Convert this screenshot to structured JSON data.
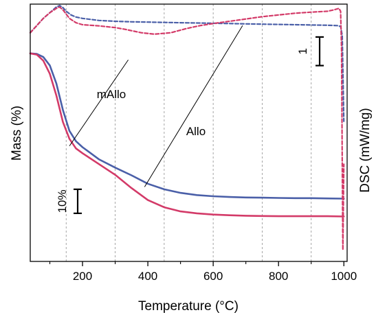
{
  "chart_data": {
    "type": "line",
    "xlabel": "Temperature (°C)",
    "ylabel_left": "Mass (%)",
    "ylabel_right": "DSC (mW/mg)",
    "xlim": [
      40,
      1010
    ],
    "x_major_ticks": [
      200,
      400,
      600,
      800,
      1000
    ],
    "x_major_tick_labels": [
      "200",
      "400",
      "600",
      "800",
      "1000"
    ],
    "x_minor_ticks": [
      100,
      300,
      500,
      700,
      900
    ],
    "gridlines_x": [
      150,
      300,
      450,
      600,
      750,
      900
    ],
    "grid": "vertical dashed",
    "mass_axis": {
      "ylim": [
        -6,
        101
      ],
      "scale_bar": {
        "label": "10%",
        "value": 10,
        "from": 14,
        "to": 24
      }
    },
    "dsc_axis": {
      "ylim": [
        -6.4,
        2.6
      ],
      "scale_bar": {
        "label": "1",
        "value": 1,
        "from": 0.45,
        "to": 1.45
      }
    },
    "annotations": [
      {
        "text": "mAllo",
        "leader_start": [
          160,
          42
        ],
        "leader_end": [
          340,
          0.65
        ],
        "leader_end_axis": "dsc"
      },
      {
        "text": "Allo",
        "leader_start": [
          390,
          25
        ],
        "leader_end": [
          690,
          1.85
        ],
        "leader_end_axis": "dsc"
      }
    ],
    "series": [
      {
        "name": "Allo",
        "kind": "mass",
        "style": "solid",
        "color": "#4a5fa8",
        "x": [
          40,
          60,
          80,
          100,
          120,
          140,
          160,
          180,
          200,
          250,
          300,
          350,
          400,
          450,
          500,
          550,
          600,
          650,
          700,
          750,
          800,
          850,
          900,
          950,
          1000
        ],
        "y": [
          80.5,
          80.3,
          79,
          75.5,
          68,
          57,
          48.3,
          44,
          41.5,
          36.5,
          33,
          29.8,
          26.3,
          24,
          22.5,
          21.6,
          21.1,
          20.8,
          20.6,
          20.5,
          20.4,
          20.3,
          20.3,
          20.2,
          20.1
        ]
      },
      {
        "name": "mAllo",
        "kind": "mass",
        "style": "solid",
        "color": "#d33a68",
        "x": [
          40,
          60,
          80,
          100,
          120,
          140,
          160,
          180,
          200,
          250,
          300,
          350,
          400,
          450,
          500,
          550,
          600,
          650,
          700,
          750,
          800,
          850,
          900,
          950,
          1000
        ],
        "y": [
          80.5,
          80,
          77.5,
          72,
          63,
          52,
          45,
          41,
          39,
          34.5,
          30,
          24.5,
          19.5,
          16.5,
          14.8,
          14,
          13.5,
          13.2,
          13,
          12.9,
          12.8,
          12.8,
          12.8,
          12.8,
          12.7
        ]
      },
      {
        "name": "Allo",
        "kind": "dsc",
        "style": "dashed",
        "color": "#4a5fa8",
        "x": [
          40,
          60,
          80,
          100,
          120,
          130,
          140,
          150,
          165,
          180,
          200,
          250,
          300,
          350,
          400,
          450,
          500,
          550,
          600,
          650,
          700,
          750,
          800,
          850,
          900,
          950,
          980,
          990,
          995,
          1000
        ],
        "y": [
          1.6,
          1.85,
          2.1,
          2.3,
          2.5,
          2.55,
          2.48,
          2.35,
          2.22,
          2.15,
          2.1,
          2.03,
          2.0,
          1.98,
          1.97,
          1.96,
          1.95,
          1.94,
          1.93,
          1.92,
          1.91,
          1.9,
          1.89,
          1.88,
          1.87,
          1.86,
          1.85,
          1.82,
          1.5,
          -1.5
        ]
      },
      {
        "name": "mAllo",
        "kind": "dsc",
        "style": "dashed",
        "color": "#d33a68",
        "x": [
          40,
          60,
          80,
          100,
          120,
          130,
          140,
          150,
          160,
          180,
          200,
          250,
          300,
          330,
          380,
          420,
          470,
          520,
          560,
          600,
          650,
          700,
          750,
          800,
          850,
          900,
          950,
          970,
          985,
          990,
          993,
          995,
          997,
          1000
        ],
        "y": [
          1.6,
          1.85,
          2.1,
          2.3,
          2.45,
          2.5,
          2.4,
          2.25,
          2.1,
          1.95,
          1.88,
          1.84,
          1.78,
          1.72,
          1.6,
          1.55,
          1.6,
          1.75,
          1.85,
          1.92,
          2.0,
          2.08,
          2.16,
          2.22,
          2.28,
          2.32,
          2.35,
          2.4,
          2.45,
          2.35,
          1.0,
          -3.0,
          -6.0,
          -3.0
        ]
      }
    ]
  }
}
